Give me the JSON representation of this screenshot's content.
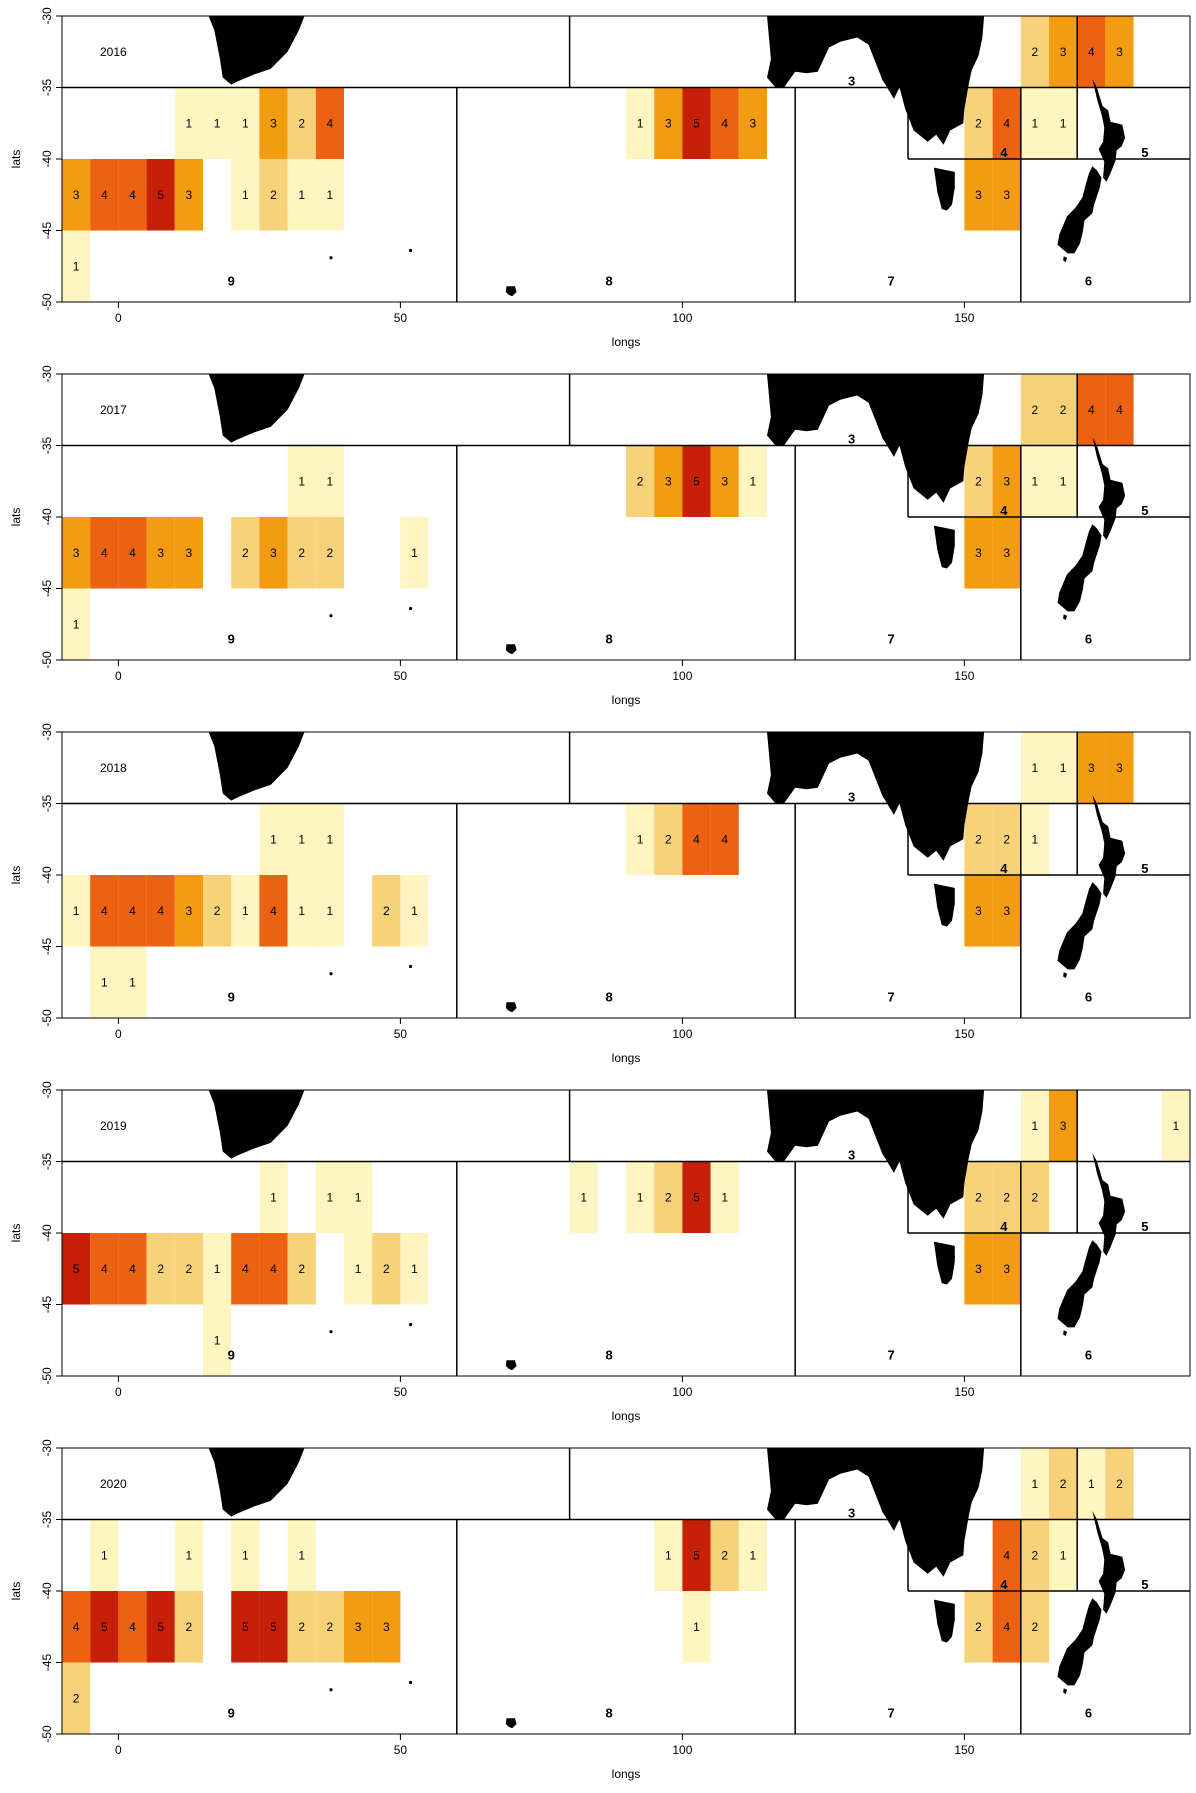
{
  "figure": {
    "xlabel": "longs",
    "ylabel": "lats",
    "xlim": [
      -10,
      190
    ],
    "ylim": [
      -50,
      -30
    ],
    "xticks": [
      0,
      50,
      100,
      150
    ],
    "yticks": [
      -30,
      -35,
      -40,
      -45,
      -50
    ],
    "colors": {
      "1": "#FFF5C0",
      "2": "#F8D27A",
      "3": "#F39C12",
      "4": "#EC6212",
      "5": "#C62008"
    },
    "land_color": "#000000",
    "boundary_color": "#000000"
  },
  "regions": [
    {
      "label": "3",
      "x": 130,
      "y": -35
    },
    {
      "label": "4",
      "x": 157,
      "y": -40
    },
    {
      "label": "5",
      "x": 182,
      "y": -40
    },
    {
      "label": "6",
      "x": 172,
      "y": -49
    },
    {
      "label": "7",
      "x": 137,
      "y": -49
    },
    {
      "label": "8",
      "x": 87,
      "y": -49
    },
    {
      "label": "9",
      "x": 20,
      "y": -49
    }
  ],
  "region_boundaries": [
    [
      [
        -10,
        -35
      ],
      [
        190,
        -35
      ]
    ],
    [
      [
        80,
        -30
      ],
      [
        80,
        -35
      ]
    ],
    [
      [
        60,
        -35
      ],
      [
        60,
        -50
      ]
    ],
    [
      [
        120,
        -35
      ],
      [
        120,
        -50
      ]
    ],
    [
      [
        140,
        -40
      ],
      [
        190,
        -40
      ]
    ],
    [
      [
        140,
        -35
      ],
      [
        140,
        -40
      ]
    ],
    [
      [
        160,
        -35
      ],
      [
        160,
        -50
      ]
    ],
    [
      [
        170,
        -30
      ],
      [
        170,
        -40
      ]
    ]
  ],
  "panels": [
    {
      "year": "2016",
      "cells": [
        {
          "lon": 160,
          "lat": -30,
          "v": 2
        },
        {
          "lon": 165,
          "lat": -30,
          "v": 3
        },
        {
          "lon": 170,
          "lat": -30,
          "v": 4
        },
        {
          "lon": 175,
          "lat": -30,
          "v": 3
        },
        {
          "lon": 10,
          "lat": -35,
          "v": 1
        },
        {
          "lon": 15,
          "lat": -35,
          "v": 1
        },
        {
          "lon": 20,
          "lat": -35,
          "v": 1
        },
        {
          "lon": 25,
          "lat": -35,
          "v": 3
        },
        {
          "lon": 30,
          "lat": -35,
          "v": 2
        },
        {
          "lon": 35,
          "lat": -35,
          "v": 4
        },
        {
          "lon": 90,
          "lat": -35,
          "v": 1
        },
        {
          "lon": 95,
          "lat": -35,
          "v": 3
        },
        {
          "lon": 100,
          "lat": -35,
          "v": 5
        },
        {
          "lon": 105,
          "lat": -35,
          "v": 4
        },
        {
          "lon": 110,
          "lat": -35,
          "v": 3
        },
        {
          "lon": 150,
          "lat": -35,
          "v": 2
        },
        {
          "lon": 155,
          "lat": -35,
          "v": 4
        },
        {
          "lon": 160,
          "lat": -35,
          "v": 1
        },
        {
          "lon": 165,
          "lat": -35,
          "v": 1
        },
        {
          "lon": -10,
          "lat": -40,
          "v": 3
        },
        {
          "lon": -5,
          "lat": -40,
          "v": 4
        },
        {
          "lon": 0,
          "lat": -40,
          "v": 4
        },
        {
          "lon": 5,
          "lat": -40,
          "v": 5
        },
        {
          "lon": 10,
          "lat": -40,
          "v": 3
        },
        {
          "lon": 20,
          "lat": -40,
          "v": 1
        },
        {
          "lon": 25,
          "lat": -40,
          "v": 2
        },
        {
          "lon": 30,
          "lat": -40,
          "v": 1
        },
        {
          "lon": 35,
          "lat": -40,
          "v": 1
        },
        {
          "lon": 150,
          "lat": -40,
          "v": 3
        },
        {
          "lon": 155,
          "lat": -40,
          "v": 3
        },
        {
          "lon": -10,
          "lat": -45,
          "v": 1
        }
      ]
    },
    {
      "year": "2017",
      "cells": [
        {
          "lon": 160,
          "lat": -30,
          "v": 2
        },
        {
          "lon": 165,
          "lat": -30,
          "v": 2
        },
        {
          "lon": 170,
          "lat": -30,
          "v": 4
        },
        {
          "lon": 175,
          "lat": -30,
          "v": 4
        },
        {
          "lon": 30,
          "lat": -35,
          "v": 1
        },
        {
          "lon": 35,
          "lat": -35,
          "v": 1
        },
        {
          "lon": 90,
          "lat": -35,
          "v": 2
        },
        {
          "lon": 95,
          "lat": -35,
          "v": 3
        },
        {
          "lon": 100,
          "lat": -35,
          "v": 5
        },
        {
          "lon": 105,
          "lat": -35,
          "v": 3
        },
        {
          "lon": 110,
          "lat": -35,
          "v": 1
        },
        {
          "lon": 150,
          "lat": -35,
          "v": 2
        },
        {
          "lon": 155,
          "lat": -35,
          "v": 3
        },
        {
          "lon": 160,
          "lat": -35,
          "v": 1
        },
        {
          "lon": 165,
          "lat": -35,
          "v": 1
        },
        {
          "lon": -10,
          "lat": -40,
          "v": 3
        },
        {
          "lon": -5,
          "lat": -40,
          "v": 4
        },
        {
          "lon": 0,
          "lat": -40,
          "v": 4
        },
        {
          "lon": 5,
          "lat": -40,
          "v": 3
        },
        {
          "lon": 10,
          "lat": -40,
          "v": 3
        },
        {
          "lon": 20,
          "lat": -40,
          "v": 2
        },
        {
          "lon": 25,
          "lat": -40,
          "v": 3
        },
        {
          "lon": 30,
          "lat": -40,
          "v": 2
        },
        {
          "lon": 35,
          "lat": -40,
          "v": 2
        },
        {
          "lon": 50,
          "lat": -40,
          "v": 1
        },
        {
          "lon": 150,
          "lat": -40,
          "v": 3
        },
        {
          "lon": 155,
          "lat": -40,
          "v": 3
        },
        {
          "lon": -10,
          "lat": -45,
          "v": 1
        }
      ]
    },
    {
      "year": "2018",
      "cells": [
        {
          "lon": 160,
          "lat": -30,
          "v": 1
        },
        {
          "lon": 165,
          "lat": -30,
          "v": 1
        },
        {
          "lon": 170,
          "lat": -30,
          "v": 3
        },
        {
          "lon": 175,
          "lat": -30,
          "v": 3
        },
        {
          "lon": 25,
          "lat": -35,
          "v": 1
        },
        {
          "lon": 30,
          "lat": -35,
          "v": 1
        },
        {
          "lon": 35,
          "lat": -35,
          "v": 1
        },
        {
          "lon": 90,
          "lat": -35,
          "v": 1
        },
        {
          "lon": 95,
          "lat": -35,
          "v": 2
        },
        {
          "lon": 100,
          "lat": -35,
          "v": 4
        },
        {
          "lon": 105,
          "lat": -35,
          "v": 4
        },
        {
          "lon": 150,
          "lat": -35,
          "v": 2
        },
        {
          "lon": 155,
          "lat": -35,
          "v": 2
        },
        {
          "lon": 160,
          "lat": -35,
          "v": 1
        },
        {
          "lon": -10,
          "lat": -40,
          "v": 1
        },
        {
          "lon": -5,
          "lat": -40,
          "v": 4
        },
        {
          "lon": 0,
          "lat": -40,
          "v": 4
        },
        {
          "lon": 5,
          "lat": -40,
          "v": 4
        },
        {
          "lon": 10,
          "lat": -40,
          "v": 3
        },
        {
          "lon": 15,
          "lat": -40,
          "v": 2
        },
        {
          "lon": 20,
          "lat": -40,
          "v": 1
        },
        {
          "lon": 25,
          "lat": -40,
          "v": 4
        },
        {
          "lon": 30,
          "lat": -40,
          "v": 1
        },
        {
          "lon": 35,
          "lat": -40,
          "v": 1
        },
        {
          "lon": 45,
          "lat": -40,
          "v": 2
        },
        {
          "lon": 50,
          "lat": -40,
          "v": 1
        },
        {
          "lon": 150,
          "lat": -40,
          "v": 3
        },
        {
          "lon": 155,
          "lat": -40,
          "v": 3
        },
        {
          "lon": -5,
          "lat": -45,
          "v": 1
        },
        {
          "lon": 0,
          "lat": -45,
          "v": 1
        }
      ]
    },
    {
      "year": "2019",
      "cells": [
        {
          "lon": 160,
          "lat": -30,
          "v": 1
        },
        {
          "lon": 165,
          "lat": -30,
          "v": 3
        },
        {
          "lon": 185,
          "lat": -30,
          "v": 1
        },
        {
          "lon": 25,
          "lat": -35,
          "v": 1
        },
        {
          "lon": 35,
          "lat": -35,
          "v": 1
        },
        {
          "lon": 40,
          "lat": -35,
          "v": 1
        },
        {
          "lon": 80,
          "lat": -35,
          "v": 1
        },
        {
          "lon": 90,
          "lat": -35,
          "v": 1
        },
        {
          "lon": 95,
          "lat": -35,
          "v": 2
        },
        {
          "lon": 100,
          "lat": -35,
          "v": 5
        },
        {
          "lon": 105,
          "lat": -35,
          "v": 1
        },
        {
          "lon": 150,
          "lat": -35,
          "v": 2
        },
        {
          "lon": 155,
          "lat": -35,
          "v": 2
        },
        {
          "lon": 160,
          "lat": -35,
          "v": 2
        },
        {
          "lon": -10,
          "lat": -40,
          "v": 5
        },
        {
          "lon": -5,
          "lat": -40,
          "v": 4
        },
        {
          "lon": 0,
          "lat": -40,
          "v": 4
        },
        {
          "lon": 5,
          "lat": -40,
          "v": 2
        },
        {
          "lon": 10,
          "lat": -40,
          "v": 2
        },
        {
          "lon": 15,
          "lat": -40,
          "v": 1
        },
        {
          "lon": 20,
          "lat": -40,
          "v": 4
        },
        {
          "lon": 25,
          "lat": -40,
          "v": 4
        },
        {
          "lon": 30,
          "lat": -40,
          "v": 2
        },
        {
          "lon": 40,
          "lat": -40,
          "v": 1
        },
        {
          "lon": 45,
          "lat": -40,
          "v": 2
        },
        {
          "lon": 50,
          "lat": -40,
          "v": 1
        },
        {
          "lon": 150,
          "lat": -40,
          "v": 3
        },
        {
          "lon": 155,
          "lat": -40,
          "v": 3
        },
        {
          "lon": 15,
          "lat": -45,
          "v": 1
        }
      ]
    },
    {
      "year": "2020",
      "cells": [
        {
          "lon": 160,
          "lat": -30,
          "v": 1
        },
        {
          "lon": 165,
          "lat": -30,
          "v": 2
        },
        {
          "lon": 170,
          "lat": -30,
          "v": 1
        },
        {
          "lon": 175,
          "lat": -30,
          "v": 2
        },
        {
          "lon": -5,
          "lat": -35,
          "v": 1
        },
        {
          "lon": 10,
          "lat": -35,
          "v": 1
        },
        {
          "lon": 20,
          "lat": -35,
          "v": 1
        },
        {
          "lon": 30,
          "lat": -35,
          "v": 1
        },
        {
          "lon": 95,
          "lat": -35,
          "v": 1
        },
        {
          "lon": 100,
          "lat": -35,
          "v": 5
        },
        {
          "lon": 105,
          "lat": -35,
          "v": 2
        },
        {
          "lon": 110,
          "lat": -35,
          "v": 1
        },
        {
          "lon": 155,
          "lat": -35,
          "v": 4
        },
        {
          "lon": 160,
          "lat": -35,
          "v": 2
        },
        {
          "lon": 165,
          "lat": -35,
          "v": 1
        },
        {
          "lon": -10,
          "lat": -40,
          "v": 4
        },
        {
          "lon": -5,
          "lat": -40,
          "v": 5
        },
        {
          "lon": 0,
          "lat": -40,
          "v": 4
        },
        {
          "lon": 5,
          "lat": -40,
          "v": 5
        },
        {
          "lon": 10,
          "lat": -40,
          "v": 2
        },
        {
          "lon": 20,
          "lat": -40,
          "v": 5
        },
        {
          "lon": 25,
          "lat": -40,
          "v": 5
        },
        {
          "lon": 30,
          "lat": -40,
          "v": 2
        },
        {
          "lon": 35,
          "lat": -40,
          "v": 2
        },
        {
          "lon": 40,
          "lat": -40,
          "v": 3
        },
        {
          "lon": 45,
          "lat": -40,
          "v": 3
        },
        {
          "lon": 100,
          "lat": -40,
          "v": 1
        },
        {
          "lon": 150,
          "lat": -40,
          "v": 2
        },
        {
          "lon": 155,
          "lat": -40,
          "v": 4
        },
        {
          "lon": 160,
          "lat": -40,
          "v": 2
        },
        {
          "lon": -10,
          "lat": -45,
          "v": 2
        }
      ]
    }
  ]
}
